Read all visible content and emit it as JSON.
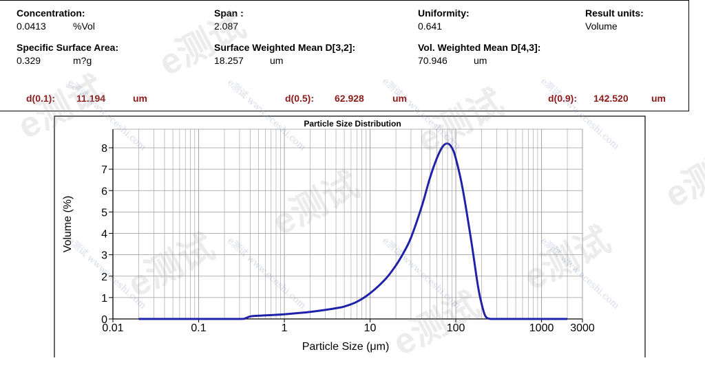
{
  "metrics": {
    "concentration": {
      "label": "Concentration:",
      "value": "0.0413",
      "unit": "%Vol"
    },
    "span": {
      "label": "Span :",
      "value": "2.087"
    },
    "uniformity": {
      "label": "Uniformity:",
      "value": "0.641"
    },
    "result_units": {
      "label": "Result units:",
      "value": "Volume"
    },
    "specific_surface_area": {
      "label": "Specific Surface Area:",
      "value": "0.329",
      "unit": "m?g"
    },
    "surface_weighted_mean": {
      "label": "Surface Weighted Mean D[3,2]:",
      "value": "18.257",
      "unit": "um"
    },
    "vol_weighted_mean": {
      "label": "Vol. Weighted Mean D[4,3]:",
      "value": "70.946",
      "unit": "um"
    }
  },
  "percentiles": {
    "d01": {
      "label": "d(0.1):",
      "value": "11.194",
      "unit": "um"
    },
    "d05": {
      "label": "d(0.5):",
      "value": "62.928",
      "unit": "um"
    },
    "d09": {
      "label": "d(0.9):",
      "value": "142.520",
      "unit": "um"
    }
  },
  "watermark": {
    "big": "e测试",
    "small": "e测试 www.eceshi.com"
  },
  "colors": {
    "curve": "#1f22a8",
    "percentile_text": "#8b1a1a",
    "grid": "#9a9a9a"
  },
  "chart_data": {
    "type": "line",
    "title": "Particle Size Distribution",
    "xlabel": "Particle Size (μm)",
    "ylabel": "Volume (%)",
    "x_scale": "log",
    "xlim": [
      0.01,
      3000
    ],
    "ylim": [
      0,
      8.5
    ],
    "x_ticks": [
      "0.01",
      "0.1",
      "1",
      "10",
      "100",
      "1000",
      "3000"
    ],
    "y_ticks": [
      "0",
      "1",
      "2",
      "3",
      "4",
      "5",
      "6",
      "7",
      "8"
    ],
    "grid": true,
    "series": [
      {
        "x": [
          0.02,
          0.1,
          0.3,
          0.35,
          0.4,
          0.5,
          0.7,
          1.0,
          1.5,
          2.0,
          3.0,
          4.0,
          5.0,
          7.0,
          10,
          15,
          20,
          25,
          30,
          40,
          50,
          60,
          70,
          80,
          90,
          100,
          120,
          150,
          180,
          200,
          220,
          240,
          260,
          300,
          500,
          1000,
          2000
        ],
        "y": [
          0,
          0,
          0,
          0.03,
          0.12,
          0.15,
          0.18,
          0.22,
          0.28,
          0.33,
          0.42,
          0.5,
          0.58,
          0.8,
          1.2,
          1.85,
          2.5,
          3.15,
          3.8,
          5.25,
          6.6,
          7.5,
          8.05,
          8.2,
          8.0,
          7.5,
          6.1,
          3.75,
          1.6,
          0.7,
          0.15,
          0.02,
          0,
          0,
          0,
          0,
          0
        ]
      }
    ]
  }
}
